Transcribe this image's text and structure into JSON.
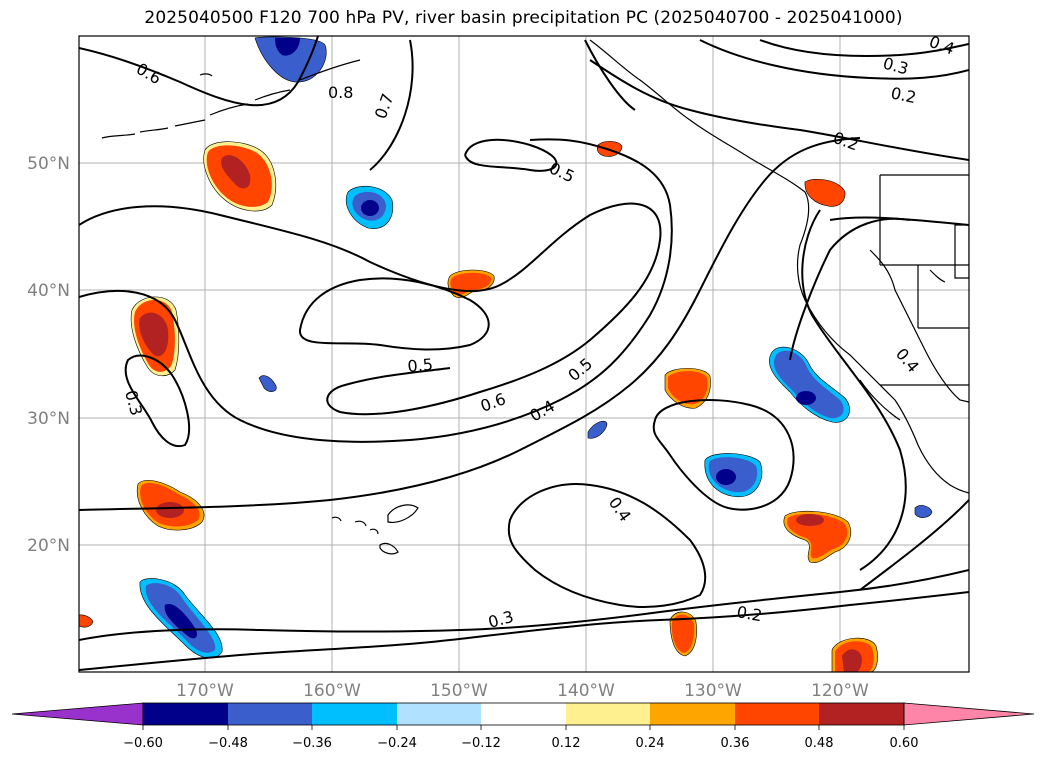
{
  "title": "2025040500 F120 700 hPa PV, river basin precipitation PC (2025040700 - 2025041000)",
  "map": {
    "lat_labels": [
      "50°N",
      "40°N",
      "30°N",
      "20°N"
    ],
    "lon_labels": [
      "170°W",
      "160°W",
      "150°W",
      "140°W",
      "130°W",
      "120°W"
    ],
    "contour_labels": [
      "0.6",
      "0.8",
      "0.7",
      "0.5",
      "0.5",
      "0.5",
      "0.6",
      "0.4",
      "0.4",
      "0.3",
      "0.3",
      "0.2",
      "0.2",
      "0.3",
      "0.2",
      "0.4",
      "0.4"
    ]
  },
  "colorbar": {
    "ticks": [
      "−0.60",
      "−0.48",
      "−0.36",
      "−0.24",
      "−0.12",
      "0.12",
      "0.24",
      "0.36",
      "0.48",
      "0.60"
    ],
    "colors": [
      "#9932cc",
      "#00008b",
      "#3a5fcd",
      "#00bfff",
      "#b0e2ff",
      "#ffffff",
      "#fff08f",
      "#ffa500",
      "#ff4500",
      "#b22222",
      "#ff85a8"
    ]
  },
  "colors": {
    "neg_strong": "#00008b",
    "neg_mid": "#3a5fcd",
    "neg_light": "#00bfff",
    "pos_light": "#fff08f",
    "pos_mid": "#ffa500",
    "pos_strong": "#ff4500",
    "pos_deep": "#b22222"
  }
}
